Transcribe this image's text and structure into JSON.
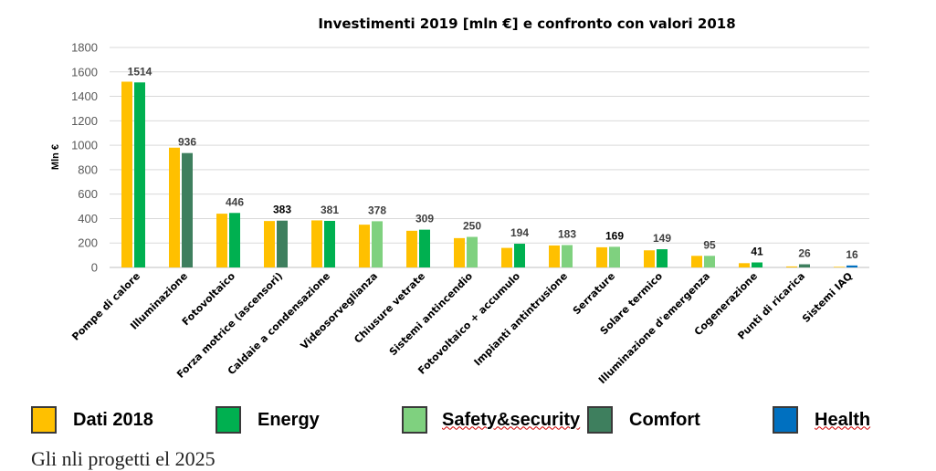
{
  "chart_data": {
    "type": "bar",
    "title": "Investimenti 2019 [mln €] e confronto con valori 2018",
    "ylabel": "Mln €",
    "xlabel": "",
    "ylim": [
      0,
      1800
    ],
    "yticks": [
      0,
      200,
      400,
      600,
      800,
      1000,
      1200,
      1400,
      1600,
      1800
    ],
    "grid": true,
    "legend_position": "bottom",
    "categories": [
      "Pompe di calore",
      "Illuminazione",
      "Fotovoltaico",
      "Forza motrice (ascensori)",
      "Caldaie a condensazione",
      "Videosorveglianza",
      "Chiusure vetrate",
      "Sistemi antincendio",
      "Fotovoltaico + accumulo",
      "Impianti antintrusione",
      "Serrature",
      "Solare termico",
      "Illuminazione d'emergenza",
      "Cogenerazione",
      "Punti di ricarica",
      "Sistemi IAQ"
    ],
    "values_2018": [
      1520,
      980,
      440,
      380,
      385,
      350,
      300,
      240,
      160,
      180,
      165,
      140,
      95,
      35,
      8,
      5
    ],
    "values_2019": [
      1514,
      936,
      446,
      383,
      381,
      378,
      309,
      250,
      194,
      183,
      169,
      149,
      95,
      41,
      26,
      16
    ],
    "labels_2019": [
      "1514",
      "936",
      "446",
      "383",
      "381",
      "378",
      "309",
      "250",
      "194",
      "183",
      "169",
      "149",
      "95",
      "41",
      "26",
      "16"
    ],
    "types_2019": [
      "Energy",
      "Comfort",
      "Energy",
      "Comfort",
      "Energy",
      "Safety&security",
      "Energy",
      "Safety&security",
      "Energy",
      "Safety&security",
      "Safety&security",
      "Energy",
      "Safety&security",
      "Energy",
      "Comfort",
      "Health"
    ],
    "series": [
      {
        "name": "Dati 2018",
        "color": "#FFC000"
      },
      {
        "name": "Energy",
        "color": "#00B050"
      },
      {
        "name": "Safety&security",
        "color": "#7FD17F"
      },
      {
        "name": "Comfort",
        "color": "#3E7F5E"
      },
      {
        "name": "Health",
        "color": "#0070C0"
      }
    ]
  },
  "page": {
    "bottom_text": "Gli nli  progetti el 2025"
  }
}
